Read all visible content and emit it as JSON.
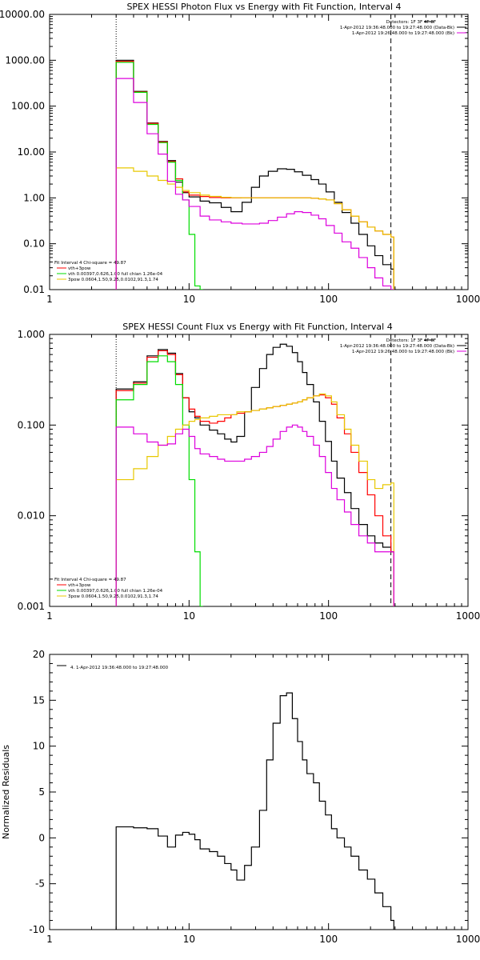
{
  "chart_data": [
    {
      "type": "line",
      "title": "SPEX HESSI Photon Flux vs Energy with Fit Function, Interval 4",
      "xlabel": "",
      "ylabel": "",
      "xscale": "log",
      "yscale": "log",
      "xlim": [
        1,
        1000
      ],
      "ylim": [
        0.01,
        10000
      ],
      "xticks": [
        "1",
        "10",
        "100",
        "1000"
      ],
      "yticks": [
        "10000.00",
        "1000.00",
        "100.00",
        "10.00",
        "1.00",
        "0.10",
        "0.01"
      ],
      "legend": [
        "Detectors: 1F 3F 4F 8F",
        "1-Apr-2012 19:36:48.000 to 19:27:48.000 (Data-Bk)",
        "1-Apr-2012 19:26:48.000 to 19:27:48.000 (Bk)"
      ],
      "legend_position": "top-right",
      "fit_legend": [
        "Fit Interval 4   Chi-square = 49.87",
        "vth+3pow",
        "vth 0.00397,0.626,1.00  full chian 1.26e-04",
        "3pow 0.0604,1.50,9.25,0.0102,91.3,1.74"
      ],
      "fit_legend_position": "bottom-left",
      "vlines": [
        3,
        280
      ],
      "series": [
        {
          "color": "#000000",
          "x": [
            3,
            4,
            5,
            6,
            7,
            8,
            9,
            10,
            12,
            14,
            17,
            20,
            24,
            28,
            32,
            37,
            43,
            50,
            57,
            65,
            75,
            85,
            96,
            110,
            125,
            145,
            165,
            190,
            215,
            245,
            280
          ],
          "values": [
            1000,
            210,
            43,
            17,
            6.5,
            2.2,
            1.3,
            1.05,
            0.85,
            0.78,
            0.62,
            0.5,
            0.8,
            1.7,
            3,
            3.8,
            4.3,
            4.2,
            3.7,
            3.1,
            2.5,
            2,
            1.35,
            0.8,
            0.48,
            0.28,
            0.16,
            0.09,
            0.055,
            0.035,
            0.028
          ]
        },
        {
          "color": "#ff0000",
          "x": [
            3,
            4,
            5,
            6,
            7,
            8,
            9,
            10,
            12,
            14,
            17,
            20,
            24,
            28,
            32,
            37,
            43,
            50,
            57,
            65,
            75,
            85,
            96,
            110,
            125,
            145,
            165,
            190,
            215,
            245,
            280
          ],
          "values": [
            950,
            205,
            42,
            16.5,
            6.2,
            2.6,
            1.35,
            1.15,
            1.07,
            1.02,
            1.0,
            1.0,
            1.0,
            1.0,
            1.0,
            1.0,
            1.0,
            1.0,
            1.0,
            1.0,
            0.98,
            0.95,
            0.9,
            0.75,
            0.55,
            0.4,
            0.3,
            0.23,
            0.19,
            0.16,
            0.14
          ]
        },
        {
          "color": "#00dd00",
          "x": [
            3,
            4,
            5,
            6,
            7,
            8,
            9,
            10,
            11,
            12
          ],
          "values": [
            900,
            200,
            40,
            16,
            6,
            2.4,
            0.9,
            0.16,
            0.012,
            0.002
          ]
        },
        {
          "color": "#e8c800",
          "x": [
            3,
            4,
            5,
            6,
            7,
            8,
            9,
            10,
            12,
            14,
            17,
            20,
            24,
            28,
            32,
            37,
            43,
            50,
            57,
            65,
            75,
            85,
            96,
            110,
            125,
            145,
            165,
            190,
            215,
            245,
            280
          ],
          "values": [
            4.5,
            3.8,
            3,
            2.4,
            2,
            1.7,
            1.45,
            1.3,
            1.15,
            1.08,
            1.03,
            1.01,
            1.0,
            1.0,
            1.0,
            1.0,
            1.0,
            1.0,
            1.0,
            1.0,
            0.98,
            0.95,
            0.9,
            0.75,
            0.55,
            0.4,
            0.3,
            0.23,
            0.19,
            0.16,
            0.14
          ]
        },
        {
          "color": "#dd00dd",
          "x": [
            3,
            4,
            5,
            6,
            7,
            8,
            9,
            10,
            12,
            14,
            17,
            20,
            24,
            28,
            32,
            37,
            43,
            50,
            57,
            65,
            75,
            85,
            96,
            110,
            125,
            145,
            165,
            190,
            215,
            245,
            280
          ],
          "values": [
            400,
            120,
            25,
            9,
            2.3,
            1.2,
            0.9,
            0.65,
            0.4,
            0.33,
            0.3,
            0.28,
            0.27,
            0.27,
            0.28,
            0.32,
            0.38,
            0.45,
            0.5,
            0.48,
            0.42,
            0.35,
            0.25,
            0.17,
            0.11,
            0.08,
            0.05,
            0.03,
            0.018,
            0.012,
            0.01
          ]
        }
      ]
    },
    {
      "type": "line",
      "title": "SPEX HESSI Count Flux vs Energy with Fit Function, Interval 4",
      "xlabel": "",
      "ylabel": "",
      "xscale": "log",
      "yscale": "log",
      "xlim": [
        1,
        1000
      ],
      "ylim": [
        0.001,
        1
      ],
      "xticks": [
        "1",
        "10",
        "100",
        "1000"
      ],
      "yticks": [
        "1.000",
        "0.100",
        "0.010",
        "0.001"
      ],
      "legend": [
        "Detectors: 1F 3F 4F 8F",
        "1-Apr-2012 19:36:48.000 to 19:27:48.000 (Data-Bk)",
        "1-Apr-2012 19:26:48.000 to 19:27:48.000 (Bk)"
      ],
      "legend_position": "top-right",
      "fit_legend": [
        "Fit Interval 4   Chi-square = 49.87",
        "vth+3pow",
        "vth 0.00397,0.626,1.00  full chian 1.26e-04",
        "3pow 0.0604,1.50,9.25,0.0102,91.3,1.74"
      ],
      "fit_legend_position": "bottom-left",
      "vlines": [
        3,
        280
      ],
      "series": [
        {
          "color": "#000000",
          "x": [
            3,
            4,
            5,
            6,
            7,
            8,
            9,
            10,
            11,
            12,
            14,
            16,
            18,
            20,
            22,
            25,
            28,
            32,
            36,
            40,
            45,
            50,
            55,
            60,
            65,
            70,
            78,
            86,
            95,
            105,
            115,
            130,
            145,
            165,
            190,
            215,
            245,
            280
          ],
          "values": [
            0.25,
            0.3,
            0.58,
            0.68,
            0.62,
            0.37,
            0.2,
            0.14,
            0.12,
            0.1,
            0.088,
            0.08,
            0.07,
            0.065,
            0.075,
            0.14,
            0.26,
            0.42,
            0.6,
            0.72,
            0.78,
            0.74,
            0.63,
            0.5,
            0.38,
            0.28,
            0.18,
            0.11,
            0.066,
            0.04,
            0.026,
            0.018,
            0.012,
            0.008,
            0.006,
            0.005,
            0.0045,
            0.004
          ]
        },
        {
          "color": "#ff0000",
          "x": [
            3,
            4,
            5,
            6,
            7,
            8,
            9,
            10,
            11,
            12,
            14,
            16,
            18,
            20,
            22,
            25,
            28,
            32,
            36,
            40,
            45,
            50,
            55,
            60,
            65,
            70,
            78,
            86,
            95,
            105,
            115,
            130,
            145,
            165,
            190,
            215,
            245,
            280
          ],
          "values": [
            0.24,
            0.29,
            0.56,
            0.66,
            0.6,
            0.36,
            0.2,
            0.15,
            0.125,
            0.11,
            0.105,
            0.11,
            0.12,
            0.13,
            0.135,
            0.14,
            0.145,
            0.15,
            0.155,
            0.16,
            0.165,
            0.17,
            0.175,
            0.18,
            0.19,
            0.2,
            0.21,
            0.215,
            0.2,
            0.17,
            0.12,
            0.08,
            0.05,
            0.03,
            0.017,
            0.01,
            0.006,
            0.004
          ]
        },
        {
          "color": "#00dd00",
          "x": [
            3,
            4,
            5,
            6,
            7,
            8,
            9,
            10,
            11,
            12
          ],
          "values": [
            0.19,
            0.28,
            0.5,
            0.58,
            0.5,
            0.28,
            0.1,
            0.025,
            0.004,
            0.0008
          ]
        },
        {
          "color": "#e8c800",
          "x": [
            3,
            4,
            5,
            6,
            7,
            8,
            9,
            10,
            11,
            12,
            14,
            16,
            18,
            20,
            22,
            25,
            28,
            32,
            36,
            40,
            45,
            50,
            55,
            60,
            65,
            70,
            78,
            86,
            95,
            105,
            115,
            130,
            145,
            165,
            190,
            215,
            245,
            280
          ],
          "values": [
            0.025,
            0.033,
            0.045,
            0.06,
            0.075,
            0.09,
            0.1,
            0.11,
            0.115,
            0.12,
            0.125,
            0.13,
            0.13,
            0.13,
            0.14,
            0.14,
            0.145,
            0.15,
            0.155,
            0.16,
            0.165,
            0.17,
            0.175,
            0.18,
            0.19,
            0.2,
            0.21,
            0.22,
            0.21,
            0.18,
            0.13,
            0.09,
            0.06,
            0.04,
            0.025,
            0.02,
            0.022,
            0.023
          ]
        },
        {
          "color": "#dd00dd",
          "x": [
            3,
            4,
            5,
            6,
            7,
            8,
            9,
            10,
            11,
            12,
            14,
            16,
            18,
            20,
            22,
            25,
            28,
            32,
            36,
            40,
            45,
            50,
            55,
            60,
            65,
            70,
            78,
            86,
            95,
            105,
            115,
            130,
            145,
            165,
            190,
            215,
            245,
            280
          ],
          "values": [
            0.095,
            0.08,
            0.065,
            0.06,
            0.062,
            0.08,
            0.09,
            0.075,
            0.055,
            0.048,
            0.045,
            0.042,
            0.04,
            0.04,
            0.04,
            0.042,
            0.045,
            0.05,
            0.058,
            0.07,
            0.085,
            0.095,
            0.1,
            0.095,
            0.085,
            0.075,
            0.06,
            0.045,
            0.03,
            0.02,
            0.015,
            0.011,
            0.008,
            0.006,
            0.005,
            0.004,
            0.004,
            0.004
          ]
        }
      ]
    },
    {
      "type": "line",
      "title": "",
      "xlabel": "",
      "ylabel": "Normalized Residuals",
      "xscale": "log",
      "yscale": "linear",
      "xlim": [
        1,
        1000
      ],
      "ylim": [
        -10,
        20
      ],
      "xticks": [
        "1",
        "10",
        "100",
        "1000"
      ],
      "yticks": [
        "20",
        "15",
        "10",
        "5",
        "0",
        "-5",
        "-10"
      ],
      "legend": [
        "4. 1-Apr-2012 19:36:48.000 to 19:27:48.000"
      ],
      "legend_position": "top-left",
      "series": [
        {
          "color": "#000000",
          "x": [
            3,
            4,
            5,
            6,
            7,
            8,
            9,
            10,
            11,
            12,
            14,
            16,
            18,
            20,
            22,
            25,
            28,
            32,
            36,
            40,
            45,
            50,
            55,
            60,
            65,
            70,
            78,
            86,
            95,
            105,
            115,
            130,
            145,
            165,
            190,
            215,
            245,
            280
          ],
          "values": [
            1.2,
            1.1,
            1.0,
            0.2,
            -1.0,
            0.3,
            0.6,
            0.4,
            -0.2,
            -1.2,
            -1.5,
            -2.0,
            -2.8,
            -3.5,
            -4.6,
            -3.0,
            -1.0,
            3.0,
            8.5,
            12.5,
            15.5,
            15.8,
            13.0,
            10.5,
            8.5,
            7.0,
            6.0,
            4.0,
            2.5,
            1.0,
            0.0,
            -1.0,
            -2.0,
            -3.5,
            -4.5,
            -6.0,
            -7.5,
            -9.0
          ]
        }
      ]
    }
  ]
}
